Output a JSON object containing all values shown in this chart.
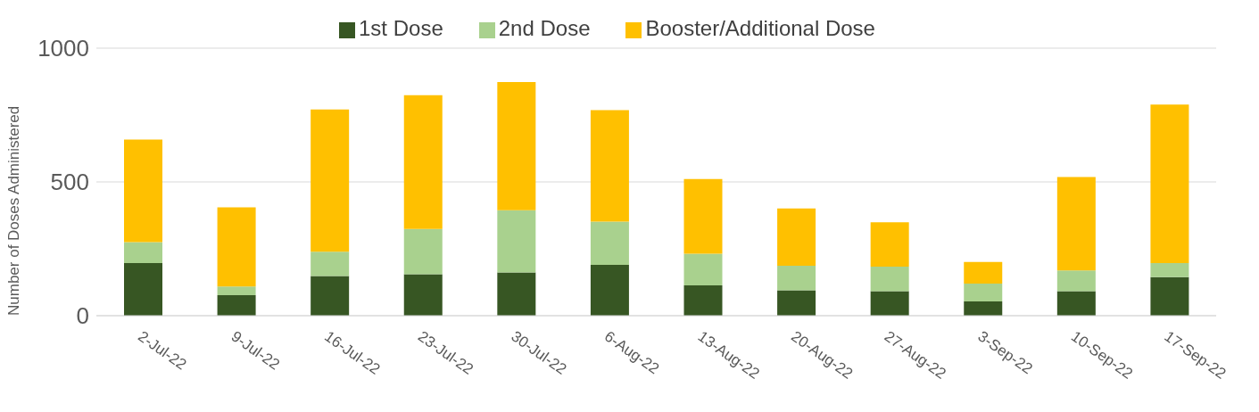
{
  "chart_data": {
    "type": "bar",
    "stacked": true,
    "ylabel": "Number of Doses Administered",
    "categories": [
      "2-Jul-22",
      "9-Jul-22",
      "16-Jul-22",
      "23-Jul-22",
      "30-Jul-22",
      "6-Aug-22",
      "13-Aug-22",
      "20-Aug-22",
      "27-Aug-22",
      "3-Sep-22",
      "10-Sep-22",
      "17-Sep-22"
    ],
    "series": [
      {
        "name": "1st Dose",
        "color": "#375623",
        "values": [
          197,
          77,
          148,
          155,
          162,
          190,
          113,
          95,
          92,
          53,
          92,
          144
        ]
      },
      {
        "name": "2nd Dose",
        "color": "#a9d18e",
        "values": [
          78,
          32,
          91,
          169,
          232,
          162,
          119,
          92,
          91,
          67,
          77,
          53
        ]
      },
      {
        "name": "Booster/Additional Dose",
        "color": "#ffc000",
        "values": [
          383,
          296,
          532,
          500,
          479,
          416,
          279,
          214,
          166,
          81,
          349,
          592
        ]
      }
    ],
    "ylim": [
      0,
      1000
    ],
    "yticks": [
      0,
      500,
      1000
    ],
    "grid": "y",
    "legend": "top"
  }
}
